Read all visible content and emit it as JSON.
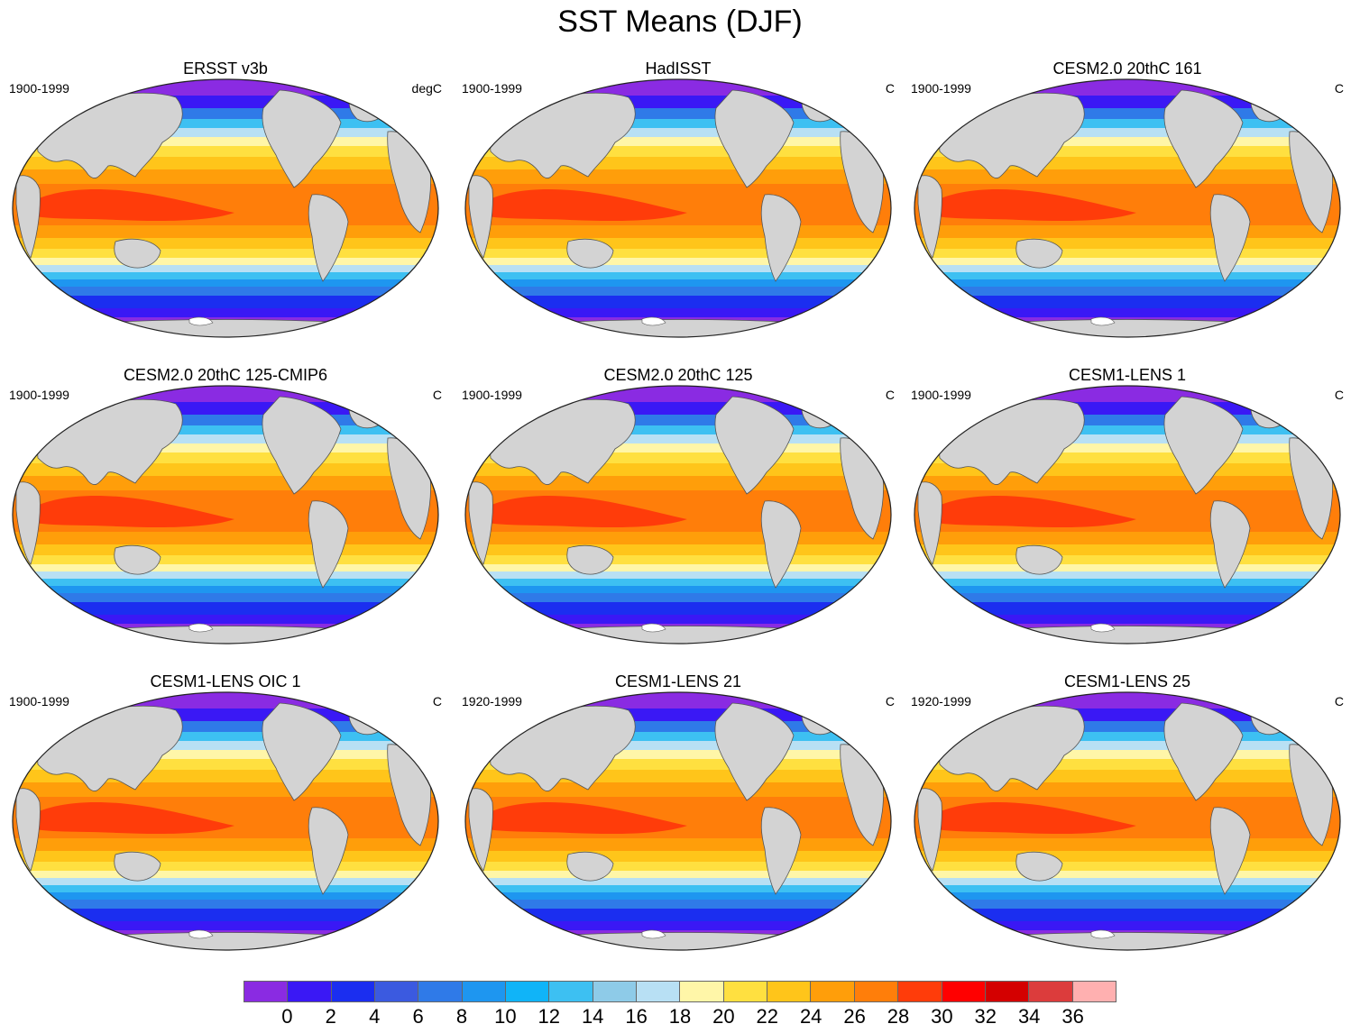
{
  "title": "SST Means (DJF)",
  "legend": {
    "colors": [
      "#8a2be2",
      "#3a18f5",
      "#1b2ef0",
      "#3b5ae0",
      "#2f7ae8",
      "#1e96f0",
      "#10b4f8",
      "#3dc0f2",
      "#8ecbe8",
      "#b8e0f4",
      "#fff6a8",
      "#ffe040",
      "#ffc51a",
      "#ff9e0a",
      "#ff7e0a",
      "#ff3c0a",
      "#ff0000",
      "#d40000",
      "#dc3c3c",
      "#ffb0b0"
    ],
    "tick_labels": [
      "0",
      "2",
      "4",
      "6",
      "8",
      "10",
      "12",
      "14",
      "16",
      "18",
      "20",
      "22",
      "24",
      "26",
      "28",
      "30",
      "32",
      "34",
      "36"
    ]
  },
  "panels": [
    {
      "title": "ERSST v3b",
      "period": "1900-1999",
      "units": "degC"
    },
    {
      "title": "HadISST",
      "period": "1900-1999",
      "units": "C"
    },
    {
      "title": "CESM2.0 20thC 161",
      "period": "1900-1999",
      "units": "C"
    },
    {
      "title": "CESM2.0 20thC 125-CMIP6",
      "period": "1900-1999",
      "units": "C"
    },
    {
      "title": "CESM2.0 20thC 125",
      "period": "1900-1999",
      "units": "C"
    },
    {
      "title": "CESM1-LENS 1",
      "period": "1900-1999",
      "units": "C"
    },
    {
      "title": "CESM1-LENS OIC 1",
      "period": "1900-1999",
      "units": "C"
    },
    {
      "title": "CESM1-LENS 21",
      "period": "1920-1999",
      "units": "C"
    },
    {
      "title": "CESM1-LENS 25",
      "period": "1920-1999",
      "units": "C"
    }
  ]
}
